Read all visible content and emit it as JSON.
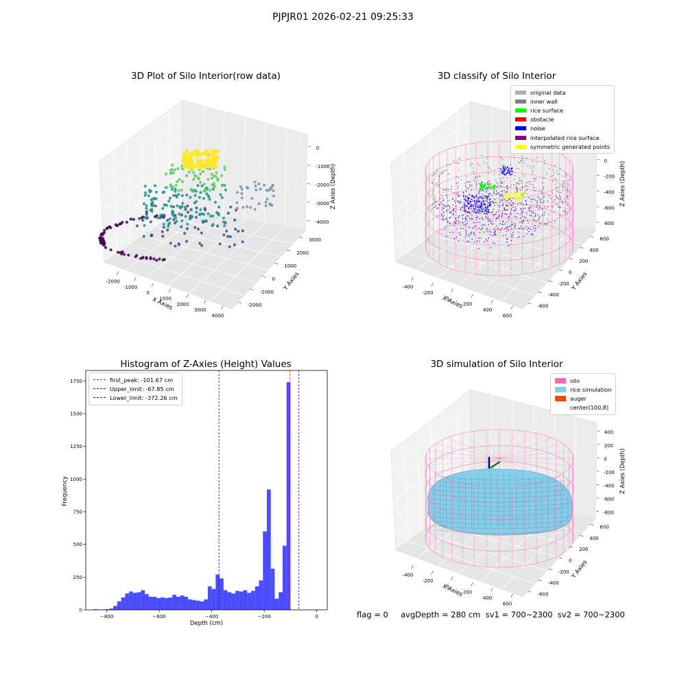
{
  "header": {
    "title": "PJPJR01 2026-02-21 09:25:33"
  },
  "footer": {
    "text": "flag = 0     avgDepth = 280 cm  sv1 = 700~2300  sv2 = 700~2300"
  },
  "panels": {
    "raw": {
      "title": "3D Plot of Silo Interior(row data)",
      "xlabel": "X Axies",
      "ylabel": "Y Axies",
      "zlabel": "Z Axies (Depth)"
    },
    "classify": {
      "title": "3D classify of Silo Interior",
      "xlabel": "X Axies",
      "ylabel": "Y Axies",
      "zlabel": "Z Axies (Depth)"
    },
    "histogram": {
      "title": "Histogram of Z-Axies (Height) Values",
      "xlabel": "Depth (cm)",
      "ylabel": "Frequency"
    },
    "simulation": {
      "title": "3D simulation of Silo Interior",
      "xlabel": "X Axies",
      "ylabel": "Y Axies",
      "zlabel": "Z Axies (Depth)"
    }
  },
  "chart_data": [
    {
      "type": "scatter",
      "panel": "raw",
      "title": "3D Plot of Silo Interior(row data)",
      "xlabel": "X Axies",
      "ylabel": "Y Axies",
      "zlabel": "Z Axies (Depth)",
      "x_ticks": [
        "-2000",
        "-1000",
        "0",
        "1000",
        "2000",
        "3000",
        "4000"
      ],
      "y_ticks": [
        "-2000",
        "-1000",
        "0",
        "1000",
        "2000",
        "3000"
      ],
      "z_ticks": [
        "0",
        "-1000",
        "-2000",
        "-3000",
        "-4000"
      ],
      "colormap": [
        "#440154",
        "#3b528b",
        "#21918c",
        "#5ec962",
        "#fde725"
      ]
    },
    {
      "type": "scatter",
      "panel": "classify",
      "title": "3D classify of Silo Interior",
      "xlabel": "X Axies",
      "ylabel": "Y Axies",
      "zlabel": "Z Axies (Depth)",
      "x_ticks": [
        "-400",
        "-200",
        "0",
        "200",
        "400",
        "600"
      ],
      "y_ticks": [
        "-600",
        "-400",
        "-200",
        "0",
        "200",
        "400",
        "600"
      ],
      "z_ticks": [
        "200",
        "0",
        "-200",
        "-400",
        "-600",
        "-800"
      ],
      "legend": [
        {
          "label": "original data",
          "color": "#b0b0b0"
        },
        {
          "label": "inner wall",
          "color": "#808080"
        },
        {
          "label": "rice surface",
          "color": "#00ff00"
        },
        {
          "label": "obstacle",
          "color": "#ff0000"
        },
        {
          "label": "noise",
          "color": "#0000ff"
        },
        {
          "label": "interpolated rice surface",
          "color": "#800080"
        },
        {
          "label": "symmetric generated points",
          "color": "#ffff00"
        }
      ]
    },
    {
      "type": "bar",
      "panel": "histogram",
      "title": "Histogram of Z-Axies (Height) Values",
      "xlabel": "Depth (cm)",
      "ylabel": "Frequency",
      "xlim": [
        -880,
        40
      ],
      "ylim": [
        0,
        1830
      ],
      "x_ticks": [
        -800,
        -600,
        -400,
        -200,
        0
      ],
      "y_ticks": [
        0,
        250,
        500,
        750,
        1000,
        1250,
        1500,
        1750
      ],
      "bin_start": -850,
      "bin_width": 15,
      "values": [
        5,
        2,
        3,
        5,
        10,
        30,
        65,
        95,
        125,
        140,
        130,
        135,
        150,
        120,
        100,
        100,
        90,
        95,
        90,
        95,
        115,
        100,
        110,
        100,
        80,
        75,
        70,
        65,
        80,
        180,
        160,
        270,
        240,
        150,
        135,
        125,
        145,
        140,
        150,
        130,
        145,
        180,
        225,
        600,
        920,
        315,
        85,
        135,
        490,
        1740
      ],
      "bar_color": "#0000ff",
      "vlines": [
        {
          "label": "first_peak: -101.67 cm",
          "x": -101.67,
          "color": "#ff0000"
        },
        {
          "label": "Upper_limit: -67.85 cm",
          "x": -67.85,
          "color": "#0000ff"
        },
        {
          "label": "Lower_limit: -372.26 cm",
          "x": -372.26,
          "color": "#0000ff"
        }
      ]
    },
    {
      "type": "area",
      "panel": "simulation",
      "title": "3D simulation of Silo Interior",
      "xlabel": "X Axies",
      "ylabel": "Y Axies",
      "zlabel": "Z Axies (Depth)",
      "x_ticks": [
        "-400",
        "-200",
        "0",
        "200",
        "400",
        "600"
      ],
      "y_ticks": [
        "-600",
        "-400",
        "-200",
        "0",
        "200",
        "400",
        "600"
      ],
      "z_ticks": [
        "400",
        "200",
        "0",
        "-200",
        "-400",
        "-600",
        "-800"
      ],
      "legend": [
        {
          "label": "silo",
          "color": "#ff69b4"
        },
        {
          "label": "rice simulation",
          "color": "#87ceeb"
        },
        {
          "label": "auger",
          "color": "#ff4500"
        },
        {
          "label": "center(100,8)",
          "color": "#ffffff"
        }
      ]
    }
  ]
}
